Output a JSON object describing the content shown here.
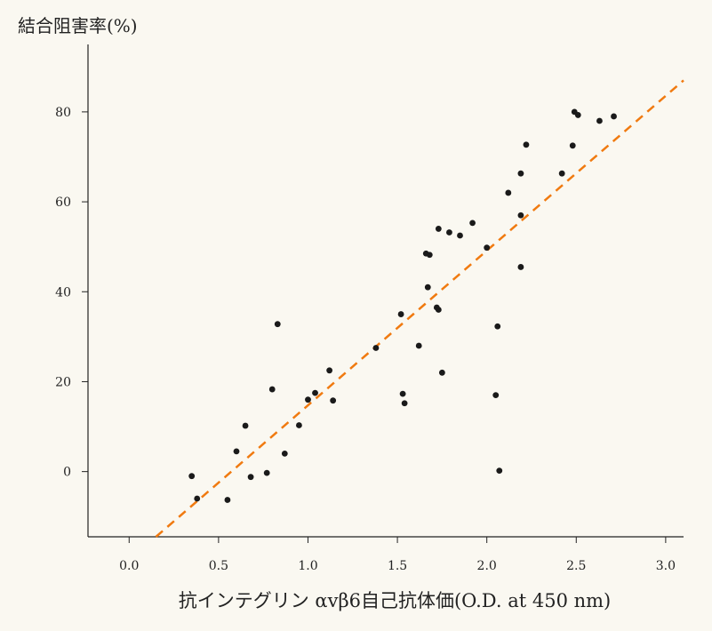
{
  "chart_data": {
    "type": "scatter",
    "ylabel": "結合阻害率(%)",
    "xlabel": "抗インテグリン αvβ6自己抗体価(O.D. at 450 nm)",
    "x_ticks": [
      0.0,
      0.5,
      1.0,
      1.5,
      2.0,
      2.5,
      3.0
    ],
    "x_tick_labels": [
      "0.0",
      "0.5",
      "1.0",
      "1.5",
      "2.0",
      "2.5",
      "3.0"
    ],
    "y_ticks": [
      0,
      20,
      40,
      60,
      80
    ],
    "y_tick_labels": [
      "0",
      "20",
      "40",
      "60",
      "80"
    ],
    "xlim": [
      -0.23,
      3.1
    ],
    "ylim": [
      -14.5,
      95
    ],
    "grid": false,
    "point_color": "#1a1a1a",
    "trend_line": {
      "style": "dashed",
      "color": "#f07a10",
      "x": [
        0.15,
        3.1
      ],
      "y": [
        -14.5,
        87
      ]
    },
    "points": [
      {
        "x": 0.35,
        "y": -1.0
      },
      {
        "x": 0.38,
        "y": -6.0
      },
      {
        "x": 0.55,
        "y": -6.3
      },
      {
        "x": 0.6,
        "y": 4.5
      },
      {
        "x": 0.65,
        "y": 10.2
      },
      {
        "x": 0.68,
        "y": -1.2
      },
      {
        "x": 0.77,
        "y": -0.3
      },
      {
        "x": 0.8,
        "y": 18.3
      },
      {
        "x": 0.83,
        "y": 32.8
      },
      {
        "x": 0.87,
        "y": 4.0
      },
      {
        "x": 0.95,
        "y": 10.3
      },
      {
        "x": 1.0,
        "y": 16.0
      },
      {
        "x": 1.04,
        "y": 17.5
      },
      {
        "x": 1.12,
        "y": 22.5
      },
      {
        "x": 1.14,
        "y": 15.8
      },
      {
        "x": 1.38,
        "y": 27.5
      },
      {
        "x": 1.52,
        "y": 35.0
      },
      {
        "x": 1.53,
        "y": 17.3
      },
      {
        "x": 1.54,
        "y": 15.2
      },
      {
        "x": 1.62,
        "y": 28.0
      },
      {
        "x": 1.66,
        "y": 48.5
      },
      {
        "x": 1.67,
        "y": 41.0
      },
      {
        "x": 1.68,
        "y": 48.2
      },
      {
        "x": 1.72,
        "y": 36.5
      },
      {
        "x": 1.73,
        "y": 36.0
      },
      {
        "x": 1.73,
        "y": 54.0
      },
      {
        "x": 1.75,
        "y": 22.0
      },
      {
        "x": 1.79,
        "y": 53.2
      },
      {
        "x": 1.85,
        "y": 52.5
      },
      {
        "x": 1.92,
        "y": 55.3
      },
      {
        "x": 2.0,
        "y": 49.8
      },
      {
        "x": 2.05,
        "y": 17.0
      },
      {
        "x": 2.06,
        "y": 32.3
      },
      {
        "x": 2.07,
        "y": 0.2
      },
      {
        "x": 2.12,
        "y": 62.0
      },
      {
        "x": 2.19,
        "y": 66.3
      },
      {
        "x": 2.19,
        "y": 57.0
      },
      {
        "x": 2.19,
        "y": 45.5
      },
      {
        "x": 2.22,
        "y": 72.7
      },
      {
        "x": 2.42,
        "y": 66.3
      },
      {
        "x": 2.48,
        "y": 72.5
      },
      {
        "x": 2.49,
        "y": 80.0
      },
      {
        "x": 2.51,
        "y": 79.3
      },
      {
        "x": 2.63,
        "y": 78.0
      },
      {
        "x": 2.71,
        "y": 79.0
      }
    ]
  }
}
